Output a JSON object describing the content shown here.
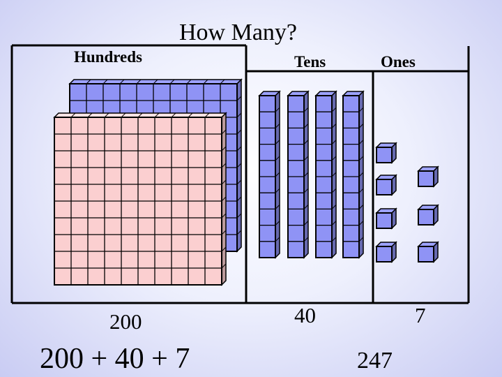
{
  "title": "How Many?",
  "columns": {
    "hundreds": {
      "header": "Hundreds",
      "value": "200",
      "blocks": 2
    },
    "tens": {
      "header": "Tens",
      "value": "40",
      "blocks": 4
    },
    "ones": {
      "header": "Ones",
      "value": "7",
      "blocks": 7
    }
  },
  "expanded_form": "200 + 40 + 7",
  "total": "247",
  "colors": {
    "hundred_back": "#8f93f5",
    "hundred_front": "#fbcfd0",
    "ten_rod": "#8f93f5",
    "one_cube": "#8f93f5",
    "border": "#000000"
  }
}
